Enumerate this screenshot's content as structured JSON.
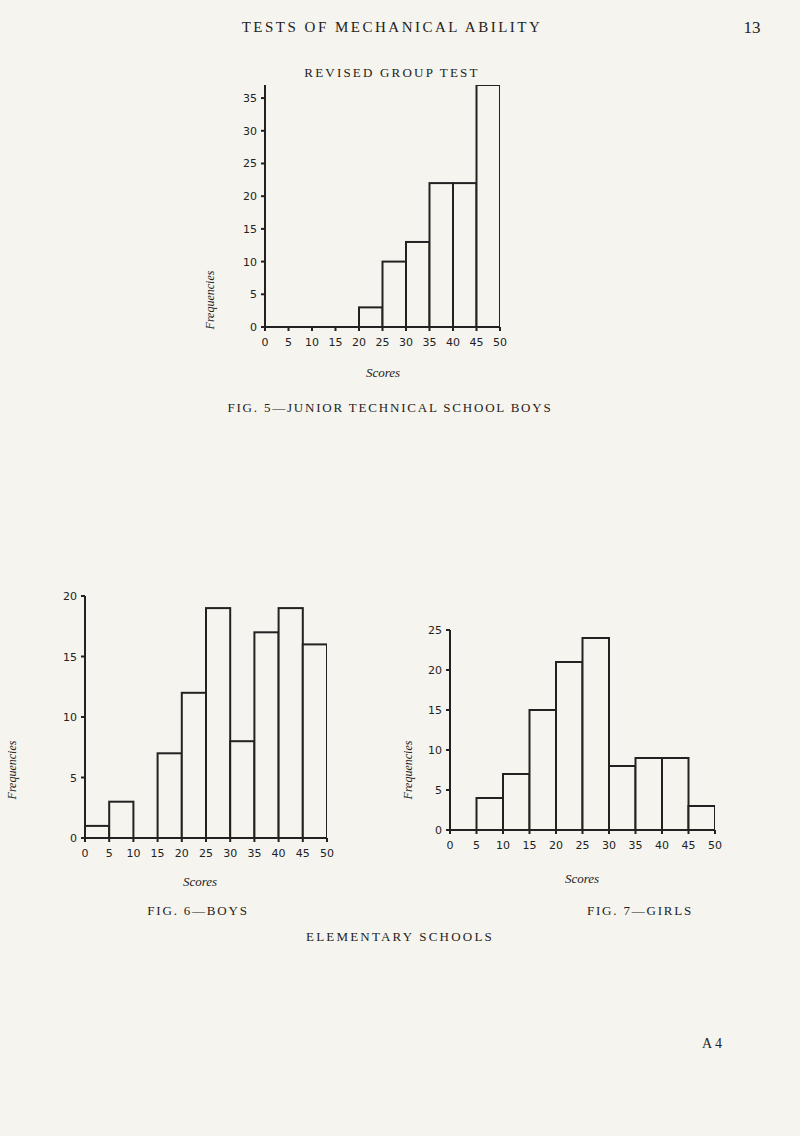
{
  "page": {
    "header": "TESTS OF MECHANICAL ABILITY",
    "page_number": 13,
    "heading": "REVISED GROUP TEST",
    "group_caption": "ELEMENTARY SCHOOLS",
    "signature": "A 4"
  },
  "chart_data": [
    {
      "type": "histogram",
      "title": "FIG. 5—JUNIOR TECHNICAL SCHOOL BOYS",
      "x_label": "Scores",
      "y_label": "Frequencies",
      "bins": [
        20,
        25,
        30,
        35,
        40,
        45,
        50
      ],
      "values": [
        3,
        10,
        13,
        22,
        22,
        37
      ],
      "color": "#222222",
      "xlim": [
        0,
        50
      ],
      "ylim": [
        0,
        37
      ],
      "xticks": [
        0,
        5,
        10,
        15,
        20,
        25,
        30,
        35,
        40,
        45,
        50
      ],
      "yticks": [
        0,
        5,
        10,
        15,
        20,
        25,
        30,
        35
      ]
    },
    {
      "type": "histogram",
      "title": "FIG. 6—BOYS",
      "x_label": "Scores",
      "y_label": "Frequencies",
      "bins": [
        0,
        5,
        10,
        15,
        20,
        25,
        30,
        35,
        40,
        45,
        50
      ],
      "values": [
        1,
        3,
        0,
        7,
        12,
        19,
        8,
        17,
        19,
        16
      ],
      "color": "#222222",
      "xlim": [
        0,
        50
      ],
      "ylim": [
        0,
        20
      ],
      "xticks": [
        0,
        5,
        10,
        15,
        20,
        25,
        30,
        35,
        40,
        45,
        50
      ],
      "yticks": [
        0,
        5,
        10,
        15,
        20
      ]
    },
    {
      "type": "histogram",
      "title": "FIG. 7—GIRLS",
      "x_label": "Scores",
      "y_label": "Frequencies",
      "bins": [
        5,
        10,
        15,
        20,
        25,
        30,
        35,
        40,
        45,
        50
      ],
      "values": [
        4,
        7,
        15,
        21,
        24,
        8,
        9,
        9,
        3
      ],
      "color": "#222222",
      "xlim": [
        0,
        50
      ],
      "ylim": [
        0,
        25
      ],
      "xticks": [
        0,
        5,
        10,
        15,
        20,
        25,
        30,
        35,
        40,
        45,
        50
      ],
      "yticks": [
        0,
        5,
        10,
        15,
        20,
        25
      ]
    }
  ]
}
